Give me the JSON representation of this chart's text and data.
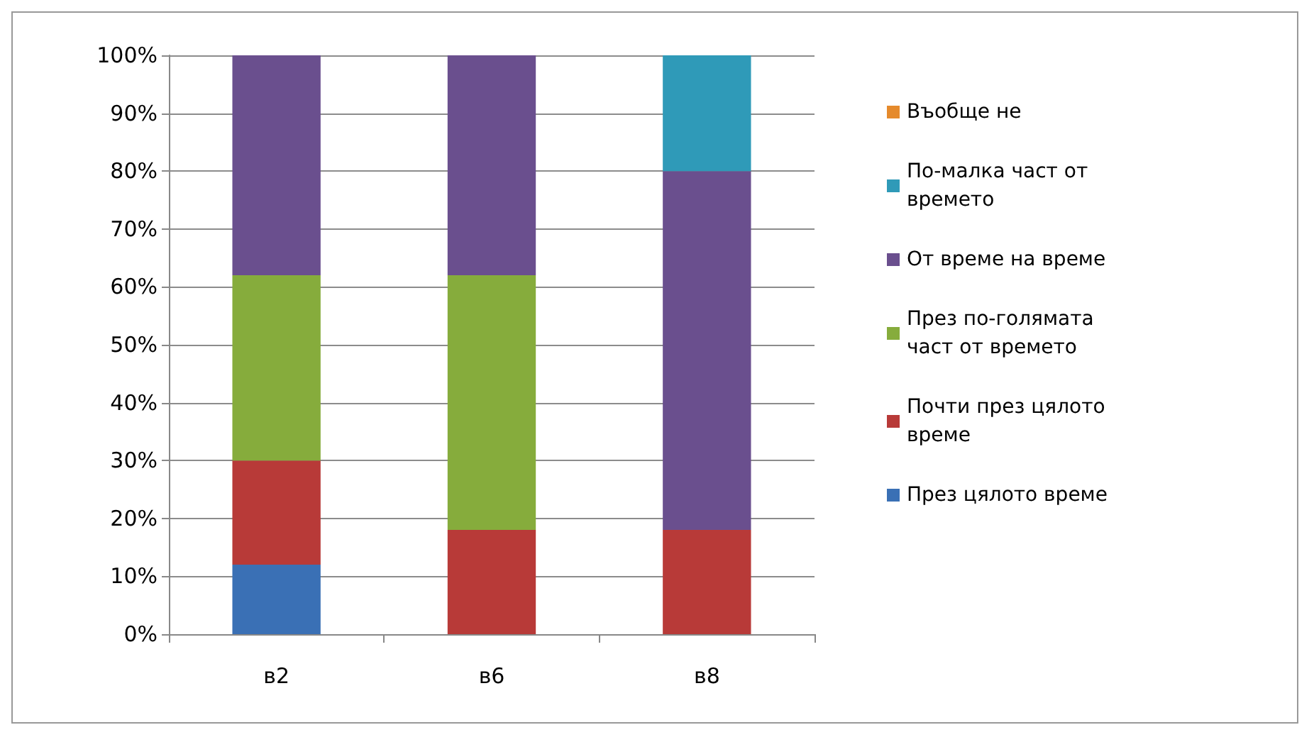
{
  "chart_data": {
    "type": "bar",
    "stacked": true,
    "categories": [
      "в2",
      "в6",
      "в8"
    ],
    "series": [
      {
        "name": "През цялото време",
        "color": "#3a70b5",
        "values": [
          12,
          0,
          0
        ]
      },
      {
        "name": "Почти през цялото време",
        "color": "#b83a38",
        "values": [
          18,
          18,
          18
        ]
      },
      {
        "name": "През по-голямата част от времето",
        "color": "#86ac3c",
        "values": [
          32,
          44,
          0
        ]
      },
      {
        "name": "От време на време",
        "color": "#6a4f8e",
        "values": [
          38,
          38,
          62
        ]
      },
      {
        "name": "По-малка част от времето",
        "color": "#2f9ab8",
        "values": [
          0,
          0,
          20
        ]
      },
      {
        "name": "Въобще не",
        "color": "#e58a2c",
        "values": [
          0,
          0,
          0
        ]
      }
    ],
    "ylim": [
      0,
      100
    ],
    "yticks": [
      {
        "value": 0,
        "label": "0%"
      },
      {
        "value": 10,
        "label": "10%"
      },
      {
        "value": 20,
        "label": "20%"
      },
      {
        "value": 30,
        "label": "30%"
      },
      {
        "value": 40,
        "label": "40%"
      },
      {
        "value": 50,
        "label": "50%"
      },
      {
        "value": 60,
        "label": "60%"
      },
      {
        "value": 70,
        "label": "70%"
      },
      {
        "value": 80,
        "label": "80%"
      },
      {
        "value": 90,
        "label": "90%"
      },
      {
        "value": 100,
        "label": "100%"
      }
    ],
    "grid": "y",
    "legend": "right"
  }
}
